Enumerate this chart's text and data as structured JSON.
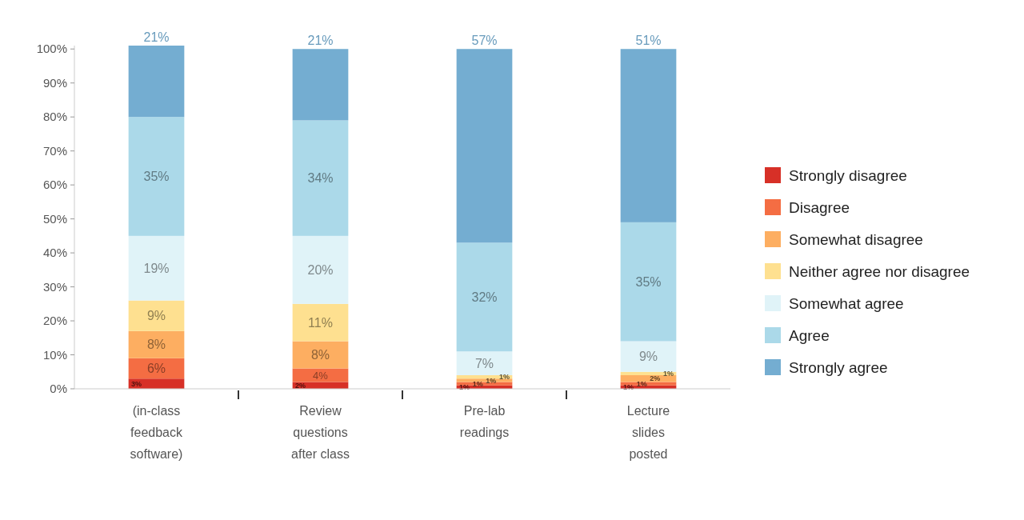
{
  "chart_data": {
    "type": "bar",
    "stacked": true,
    "categories": [
      "(in-class feedback software)",
      "Review questions after class",
      "Pre-lab readings",
      "Lecture slides posted"
    ],
    "series": [
      {
        "name": "Strongly disagree",
        "color": "#d73027",
        "values": [
          3,
          2,
          1,
          1
        ],
        "value_labels": [
          "3%",
          "2%",
          "1%",
          "1%"
        ]
      },
      {
        "name": "Disagree",
        "color": "#f46d43",
        "values": [
          6,
          4,
          1,
          1
        ],
        "value_labels": [
          "6%",
          "4%",
          "1%",
          "1%"
        ]
      },
      {
        "name": "Somewhat disagree",
        "color": "#fdae61",
        "values": [
          8,
          8,
          1,
          2
        ],
        "value_labels": [
          "8%",
          "8%",
          "1%",
          "2%"
        ]
      },
      {
        "name": "Neither agree nor disagree",
        "color": "#fee090",
        "values": [
          9,
          11,
          1,
          1
        ],
        "value_labels": [
          "9%",
          "11%",
          "1%",
          "1%"
        ]
      },
      {
        "name": "Somewhat agree",
        "color": "#e0f3f8",
        "values": [
          19,
          20,
          7,
          9
        ],
        "value_labels": [
          "19%",
          "20%",
          "7%",
          "9%"
        ]
      },
      {
        "name": "Agree",
        "color": "#abd9e9",
        "values": [
          35,
          34,
          32,
          35
        ],
        "value_labels": [
          "35%",
          "34%",
          "32%",
          "35%"
        ]
      },
      {
        "name": "Strongly agree",
        "color": "#74add1",
        "values": [
          21,
          21,
          57,
          51
        ],
        "value_labels": [
          "21%",
          "21%",
          "57%",
          "51%"
        ]
      }
    ],
    "ylim": [
      0,
      101
    ],
    "yticks": [
      {
        "value": 0,
        "label": "0%"
      },
      {
        "value": 10,
        "label": "10%"
      },
      {
        "value": 20,
        "label": "20%"
      },
      {
        "value": 30,
        "label": "30%"
      },
      {
        "value": 40,
        "label": "40%"
      },
      {
        "value": 50,
        "label": "50%"
      },
      {
        "value": 60,
        "label": "60%"
      },
      {
        "value": 70,
        "label": "70%"
      },
      {
        "value": 80,
        "label": "80%"
      },
      {
        "value": 90,
        "label": "90%"
      },
      {
        "value": 100,
        "label": "100%"
      }
    ],
    "legend": "right",
    "grid": false
  }
}
